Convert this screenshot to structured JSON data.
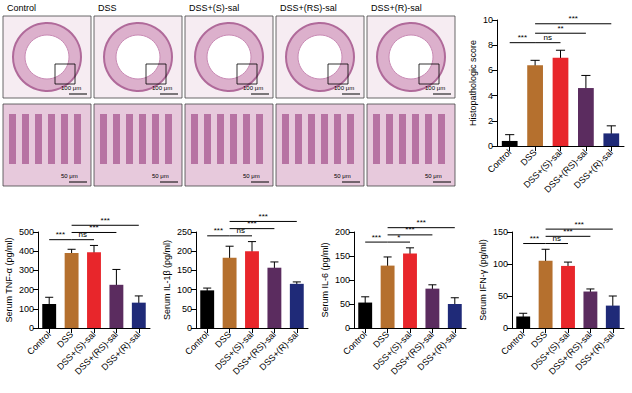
{
  "image_panels": {
    "titles": [
      "Control",
      "DSS",
      "DSS+(S)-sal",
      "DSS+(RS)-sal",
      "DSS+(R)-sal"
    ],
    "scale_bars": [
      "100 μm",
      "50 μm"
    ]
  },
  "chart_data": [
    {
      "type": "bar",
      "y_label": "Histopathologic score",
      "categories": [
        "Control",
        "DSS",
        "DSS+(S)-sal",
        "DSS+(RS)-sal",
        "DSS+(R)-sal"
      ],
      "values": [
        0.4,
        6.4,
        7.0,
        4.6,
        1.0
      ],
      "errors": [
        0.5,
        0.4,
        0.6,
        1.0,
        0.6
      ],
      "colors": [
        "#000000",
        "#b5702e",
        "#e8262b",
        "#5b2c5f",
        "#1f2a78"
      ],
      "ylim": [
        0,
        10
      ],
      "yticks": [
        0,
        2,
        4,
        6,
        8,
        10
      ],
      "grid": false,
      "significance": [
        {
          "from": 0,
          "to": 1,
          "label": "***"
        },
        {
          "from": 1,
          "to": 2,
          "label": "ns"
        },
        {
          "from": 1,
          "to": 3,
          "label": "**"
        },
        {
          "from": 1,
          "to": 4,
          "label": "***"
        }
      ]
    },
    {
      "type": "bar",
      "y_label": "Serum TNF-α (pg/ml)",
      "categories": [
        "Control",
        "DSS",
        "DSS+(S)-sal",
        "DSS+(RS)-sal",
        "DSS+(R)-sal"
      ],
      "values": [
        125,
        390,
        395,
        225,
        132
      ],
      "errors": [
        35,
        20,
        35,
        80,
        35
      ],
      "colors": [
        "#000000",
        "#b5702e",
        "#e8262b",
        "#5b2c5f",
        "#1f2a78"
      ],
      "ylim": [
        0,
        500
      ],
      "yticks": [
        0,
        100,
        200,
        300,
        400,
        500
      ],
      "grid": false,
      "significance": [
        {
          "from": 0,
          "to": 1,
          "label": "***"
        },
        {
          "from": 1,
          "to": 2,
          "label": "ns"
        },
        {
          "from": 1,
          "to": 3,
          "label": "***"
        },
        {
          "from": 1,
          "to": 4,
          "label": "***"
        }
      ]
    },
    {
      "type": "bar",
      "y_label": "Serum IL-1β (pg/ml)",
      "categories": [
        "Control",
        "DSS",
        "DSS+(S)-sal",
        "DSS+(RS)-sal",
        "DSS+(R)-sal"
      ],
      "values": [
        98,
        183,
        200,
        157,
        115
      ],
      "errors": [
        6,
        30,
        25,
        15,
        5
      ],
      "colors": [
        "#000000",
        "#b5702e",
        "#e8262b",
        "#5b2c5f",
        "#1f2a78"
      ],
      "ylim": [
        0,
        250
      ],
      "yticks": [
        0,
        50,
        100,
        150,
        200,
        250
      ],
      "grid": false,
      "significance": [
        {
          "from": 0,
          "to": 1,
          "label": "***"
        },
        {
          "from": 1,
          "to": 2,
          "label": "ns"
        },
        {
          "from": 1,
          "to": 3,
          "label": "***"
        },
        {
          "from": 1,
          "to": 4,
          "label": "***"
        }
      ]
    },
    {
      "type": "bar",
      "y_label": "Serum IL-6 (pg/ml)",
      "categories": [
        "Control",
        "DSS",
        "DSS+(S)-sal",
        "DSS+(RS)-sal",
        "DSS+(R)-sal"
      ],
      "values": [
        53,
        130,
        155,
        82,
        50
      ],
      "errors": [
        12,
        18,
        12,
        8,
        13
      ],
      "colors": [
        "#000000",
        "#b5702e",
        "#e8262b",
        "#5b2c5f",
        "#1f2a78"
      ],
      "ylim": [
        0,
        200
      ],
      "yticks": [
        0,
        50,
        100,
        150,
        200
      ],
      "grid": false,
      "significance": [
        {
          "from": 0,
          "to": 1,
          "label": "***"
        },
        {
          "from": 1,
          "to": 2,
          "label": "*"
        },
        {
          "from": 1,
          "to": 3,
          "label": "***"
        },
        {
          "from": 1,
          "to": 4,
          "label": "***"
        }
      ]
    },
    {
      "type": "bar",
      "y_label": "Serum IFN-γ (pg/ml)",
      "categories": [
        "Control",
        "DSS",
        "DSS+(S)-sal",
        "DSS+(RS)-sal",
        "DSS+(R)-sal"
      ],
      "values": [
        18,
        105,
        97,
        57,
        35
      ],
      "errors": [
        5,
        18,
        6,
        4,
        15
      ],
      "colors": [
        "#000000",
        "#b5702e",
        "#e8262b",
        "#5b2c5f",
        "#1f2a78"
      ],
      "ylim": [
        0,
        150
      ],
      "yticks": [
        0,
        50,
        100,
        150
      ],
      "grid": false,
      "significance": [
        {
          "from": 0,
          "to": 1,
          "label": "***"
        },
        {
          "from": 1,
          "to": 2,
          "label": "ns"
        },
        {
          "from": 1,
          "to": 3,
          "label": "***"
        },
        {
          "from": 1,
          "to": 4,
          "label": "***"
        }
      ]
    }
  ]
}
